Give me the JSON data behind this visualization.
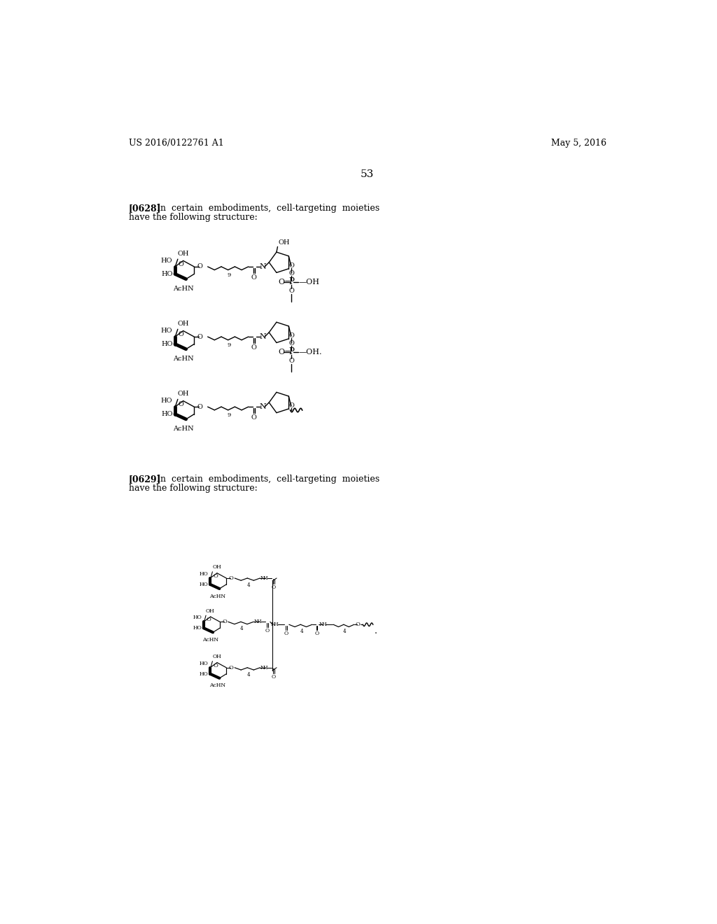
{
  "page_number": "53",
  "left_header": "US 2016/0122761 A1",
  "right_header": "May 5, 2016",
  "background_color": "#ffffff"
}
